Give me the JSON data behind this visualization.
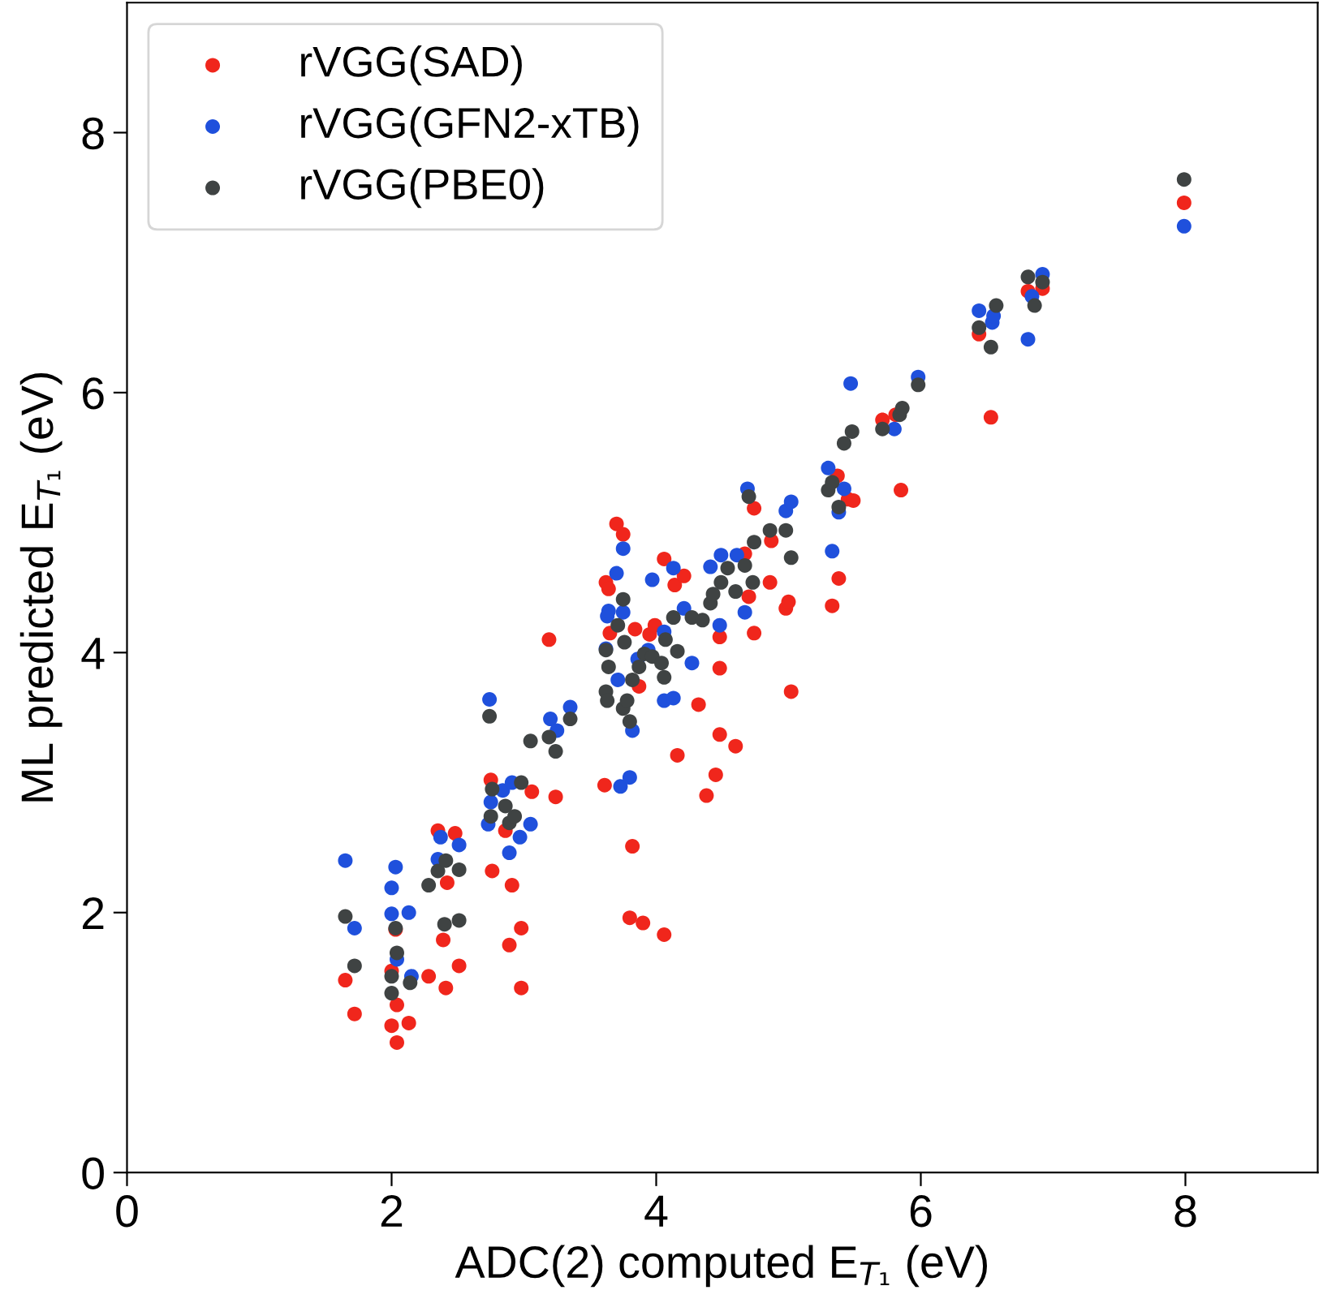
{
  "chart_data": {
    "type": "scatter",
    "xlabel": "ADC(2) computed E$_{T₁}$ (eV)",
    "ylabel": "ML predicted E$_{T₁}$ (eV)",
    "xlim": [
      0,
      9
    ],
    "ylim": [
      0,
      9
    ],
    "xticks": [
      0,
      2,
      4,
      6,
      8
    ],
    "yticks": [
      0,
      2,
      4,
      6,
      8
    ],
    "grid": false,
    "legend": "top left",
    "marker": "circle",
    "series": [
      {
        "name": "rVGG(SAD)",
        "color": "#f0261c",
        "x": [
          1.65,
          1.72,
          2.0,
          2.0,
          2.04,
          2.04,
          2.03,
          2.13,
          2.28,
          2.35,
          2.39,
          2.41,
          2.42,
          2.48,
          2.51,
          2.75,
          2.76,
          2.86,
          2.89,
          2.91,
          2.98,
          2.98,
          3.06,
          3.19,
          3.24,
          3.61,
          3.62,
          3.64,
          3.7,
          3.75,
          3.65,
          3.82,
          3.8,
          3.9,
          4.06,
          3.87,
          3.84,
          3.95,
          3.99,
          4.06,
          4.14,
          4.21,
          4.16,
          4.32,
          4.38,
          4.45,
          4.48,
          4.48,
          4.48,
          4.6,
          4.67,
          4.7,
          4.74,
          4.74,
          4.86,
          4.87,
          4.98,
          5.0,
          5.02,
          5.33,
          5.38,
          5.37,
          5.45,
          5.49,
          5.71,
          5.81,
          5.85,
          6.44,
          6.53,
          6.81,
          6.92,
          7.99
        ],
        "values": [
          1.48,
          1.22,
          1.55,
          1.13,
          1.0,
          1.29,
          1.87,
          1.15,
          1.51,
          2.63,
          1.79,
          1.42,
          2.23,
          2.61,
          1.59,
          3.02,
          2.32,
          2.63,
          1.75,
          2.21,
          1.88,
          1.42,
          2.93,
          4.1,
          2.89,
          2.98,
          4.54,
          4.49,
          4.99,
          4.91,
          4.15,
          2.51,
          1.96,
          1.92,
          1.83,
          3.74,
          4.18,
          4.14,
          4.21,
          4.72,
          4.52,
          4.59,
          3.21,
          3.6,
          2.9,
          3.06,
          3.37,
          3.88,
          4.12,
          3.28,
          4.76,
          4.43,
          4.15,
          5.11,
          4.54,
          4.86,
          4.34,
          4.39,
          3.7,
          4.36,
          4.57,
          5.36,
          5.18,
          5.17,
          5.79,
          5.83,
          5.25,
          6.45,
          5.81,
          6.78,
          6.8,
          7.46
        ]
      },
      {
        "name": "rVGG(GFN2-xTB)",
        "color": "#1f50dc",
        "x": [
          1.65,
          1.72,
          2.0,
          2.03,
          2.0,
          2.04,
          2.13,
          2.15,
          2.37,
          2.35,
          2.51,
          2.74,
          2.73,
          2.75,
          2.84,
          2.89,
          2.91,
          2.97,
          3.05,
          3.2,
          3.25,
          3.35,
          3.62,
          3.63,
          3.64,
          3.7,
          3.75,
          3.75,
          3.73,
          3.8,
          3.82,
          3.71,
          3.86,
          3.97,
          4.06,
          4.13,
          4.13,
          4.06,
          4.21,
          4.27,
          4.41,
          4.49,
          4.61,
          4.67,
          4.69,
          4.98,
          5.02,
          5.3,
          5.33,
          5.38,
          5.42,
          5.47,
          5.8,
          5.98,
          6.44,
          6.54,
          6.55,
          6.81,
          6.84,
          6.92,
          7.99,
          4.48,
          3.94
        ],
        "values": [
          2.4,
          1.88,
          2.19,
          2.35,
          1.99,
          1.64,
          2.0,
          1.51,
          2.58,
          2.41,
          2.52,
          3.64,
          2.68,
          2.85,
          2.94,
          2.46,
          3.0,
          2.58,
          2.68,
          3.49,
          3.4,
          3.58,
          4.03,
          4.28,
          4.32,
          4.61,
          4.8,
          4.31,
          2.97,
          3.04,
          3.4,
          3.79,
          3.95,
          4.56,
          3.63,
          3.65,
          4.65,
          4.16,
          4.34,
          3.92,
          4.66,
          4.75,
          4.75,
          4.31,
          5.26,
          5.09,
          5.16,
          5.42,
          4.78,
          5.08,
          5.26,
          6.07,
          5.72,
          6.12,
          6.63,
          6.54,
          6.59,
          6.41,
          6.74,
          6.91,
          7.28,
          4.21,
          4.02
        ]
      },
      {
        "name": "rVGG(PBE0)",
        "color": "#3f4343",
        "x": [
          1.65,
          1.72,
          2.0,
          2.0,
          2.04,
          2.03,
          2.14,
          2.28,
          2.35,
          2.4,
          2.41,
          2.51,
          2.51,
          2.74,
          2.75,
          2.76,
          2.86,
          2.89,
          2.93,
          2.98,
          3.05,
          3.19,
          3.24,
          3.35,
          3.62,
          3.63,
          3.62,
          3.64,
          3.71,
          3.75,
          3.75,
          3.8,
          3.76,
          3.82,
          3.87,
          3.91,
          3.97,
          4.04,
          4.06,
          4.07,
          4.13,
          4.16,
          4.27,
          4.35,
          4.41,
          4.43,
          4.49,
          4.54,
          4.6,
          4.67,
          4.73,
          4.7,
          4.74,
          4.86,
          4.98,
          5.02,
          5.3,
          5.33,
          5.38,
          5.42,
          5.48,
          5.71,
          5.84,
          5.86,
          5.98,
          6.44,
          6.53,
          6.57,
          6.81,
          6.86,
          6.92,
          7.99,
          3.78
        ],
        "values": [
          1.97,
          1.59,
          1.51,
          1.38,
          1.69,
          1.88,
          1.46,
          2.21,
          2.32,
          1.91,
          2.4,
          1.94,
          2.33,
          3.51,
          2.74,
          2.95,
          2.82,
          2.69,
          2.74,
          3.0,
          3.32,
          3.35,
          3.24,
          3.49,
          3.7,
          3.63,
          4.02,
          3.89,
          4.21,
          4.41,
          3.57,
          3.47,
          4.08,
          3.79,
          3.89,
          3.99,
          3.97,
          3.92,
          3.81,
          4.1,
          4.27,
          4.01,
          4.27,
          4.25,
          4.38,
          4.45,
          4.54,
          4.65,
          4.47,
          4.67,
          4.54,
          5.2,
          4.85,
          4.94,
          4.94,
          4.73,
          5.25,
          5.31,
          5.12,
          5.61,
          5.7,
          5.72,
          5.83,
          5.88,
          6.06,
          6.5,
          6.35,
          6.67,
          6.89,
          6.67,
          6.85,
          7.64,
          3.63
        ]
      }
    ]
  }
}
